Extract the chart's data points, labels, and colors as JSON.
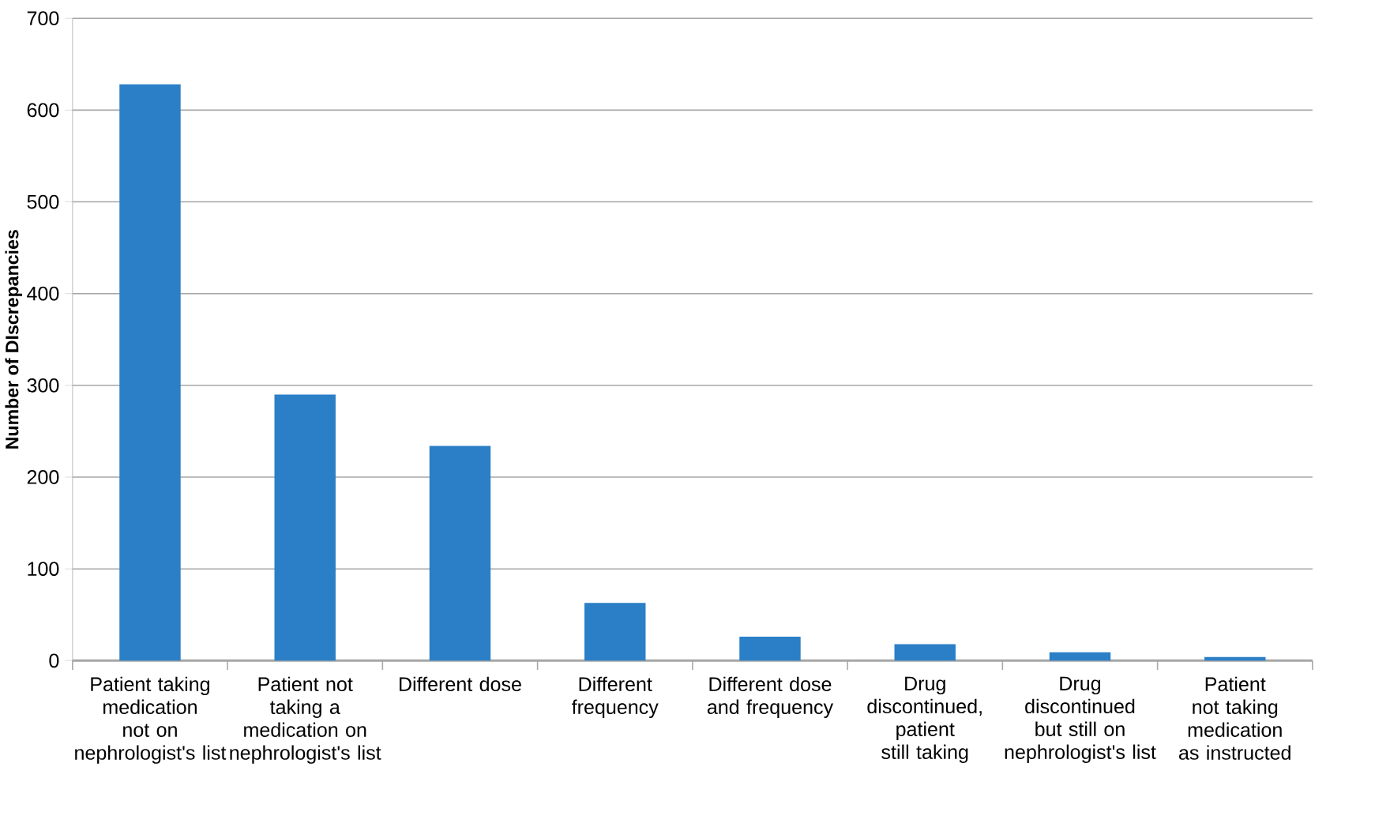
{
  "chart_data": {
    "type": "bar",
    "ylabel": "Number of DIscrepancies",
    "categories": [
      "Patient taking medication not on nephrologist's list",
      "Patient not taking a medication on nephrologist's list",
      "Different dose",
      "Different frequency",
      "Different dose and frequency",
      "Drug discontinued, patient still taking",
      "Drug discontinued but still on nephrologist's list",
      "Patient not taking medication as instructed"
    ],
    "values": [
      628,
      290,
      234,
      63,
      26,
      18,
      9,
      4
    ],
    "color": "#2a7fc7",
    "ylim": [
      0,
      700
    ],
    "yticks": [
      0,
      100,
      200,
      300,
      400,
      500,
      600,
      700
    ],
    "grid": "y"
  }
}
